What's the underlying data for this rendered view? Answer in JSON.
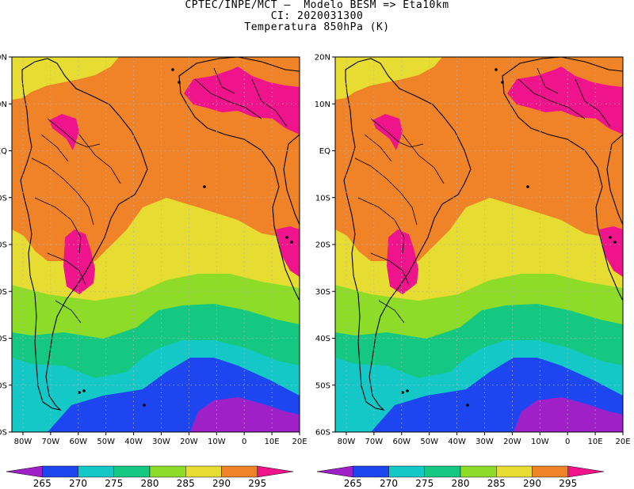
{
  "title": {
    "line1": "CPTEC/INPE/MCT –  Modelo BESM => Eta10km",
    "line2": "CI: 2020031300",
    "line3": "Temperatura 850hPa (K)"
  },
  "axes": {
    "lon_labels": [
      "80W",
      "70W",
      "60W",
      "50W",
      "40W",
      "30W",
      "20W",
      "10W",
      "0",
      "10E",
      "20E"
    ],
    "lat_labels": [
      "20N",
      "10N",
      "EQ",
      "10S",
      "20S",
      "30S",
      "40S",
      "50S",
      "60S"
    ],
    "lon_range": [
      -84,
      20
    ],
    "lat_range": [
      -60,
      20
    ],
    "grid": "dotted"
  },
  "colorbar": {
    "labels": [
      "265",
      "270",
      "275",
      "280",
      "285",
      "290",
      "295"
    ],
    "bins": [
      "<265",
      "265-270",
      "270-275",
      "275-280",
      "280-285",
      "285-290",
      "290-295",
      ">295"
    ],
    "colors": [
      "#a020c8",
      "#1e46f0",
      "#14c8c8",
      "#14c882",
      "#8cdc28",
      "#e6dc32",
      "#f08228",
      "#f0148c"
    ]
  },
  "panels": [
    "left",
    "right"
  ]
}
